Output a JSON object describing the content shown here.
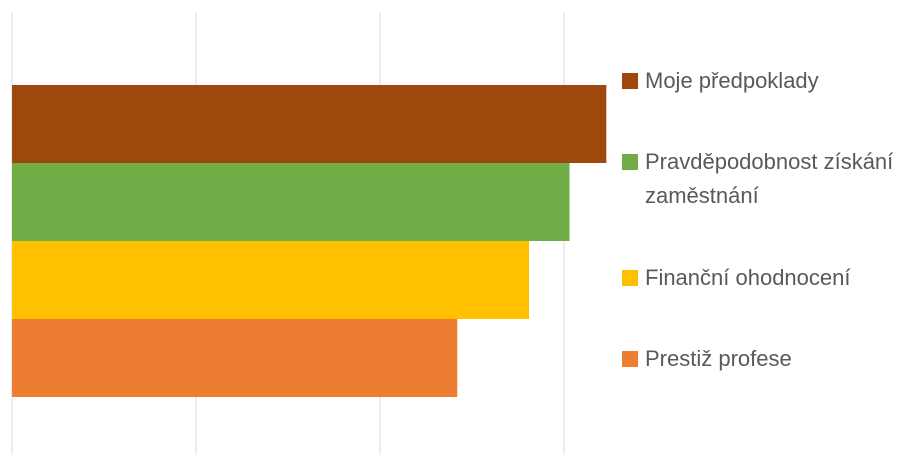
{
  "chart_data": {
    "type": "bar",
    "orientation": "horizontal",
    "series": [
      {
        "name": "Moje předpoklady",
        "color": "#9e480e",
        "values": [
          3.23
        ]
      },
      {
        "name": "Pravděpodobnost získání zaměstnání",
        "color": "#70ad47",
        "values": [
          3.03
        ]
      },
      {
        "name": "Finanční ohodnocení",
        "color": "#ffc000",
        "values": [
          2.81
        ]
      },
      {
        "name": "Prestiž profese",
        "color": "#ed7d31",
        "values": [
          2.42
        ]
      }
    ],
    "xlim": [
      0,
      3.25
    ],
    "xticks": [
      0,
      1,
      2,
      3
    ],
    "grid": true,
    "legend": "right"
  }
}
